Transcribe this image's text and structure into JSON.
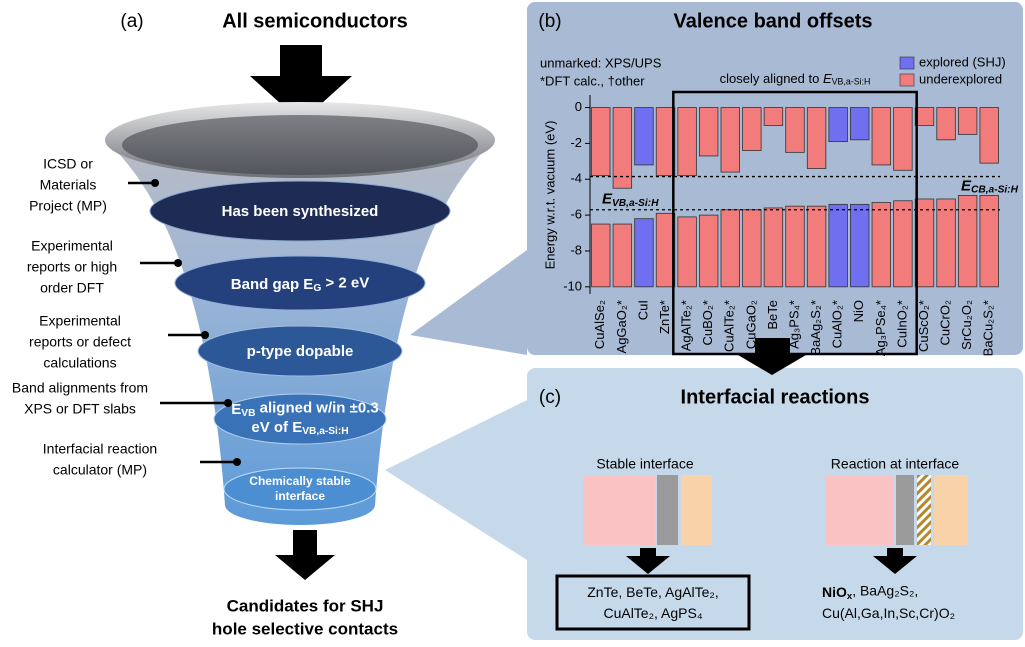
{
  "panel_a": {
    "tag": "(a)",
    "title": "All semiconductors",
    "stages": [
      [
        [
          {
            "t": "Has been synthesized"
          }
        ]
      ],
      [
        [
          {
            "t": "Band gap E"
          },
          {
            "sub": "G"
          },
          {
            "t": " > 2 eV"
          }
        ]
      ],
      [
        [
          {
            "t": "p-type dopable"
          }
        ]
      ],
      [
        [
          {
            "t": "E"
          },
          {
            "sub": "VB"
          },
          {
            "t": " aligned w/in ±0.3"
          }
        ],
        [
          {
            "t": "eV of E"
          },
          {
            "sub": "VB,a-Si:H"
          }
        ]
      ],
      [
        [
          {
            "t": "Chemically stable"
          }
        ],
        [
          {
            "t": "interface"
          }
        ]
      ]
    ],
    "criteria": [
      [
        "ICSD or",
        "Materials",
        "Project (MP)"
      ],
      [
        "Experimental",
        "reports or high",
        "order DFT"
      ],
      [
        "Experimental",
        "reports or defect",
        "calculations"
      ],
      [
        "Band alignments from",
        "XPS or DFT slabs"
      ],
      [
        "Interfacial reaction",
        "calculator (MP)"
      ]
    ],
    "result": [
      "Candidates for SHJ",
      "hole selective contacts"
    ]
  },
  "chart_data": {
    "type": "bar",
    "tag": "(b)",
    "title": "Valence band offsets",
    "y_label": "Energy w.r.t. vacuum (eV)",
    "notes": [
      "unmarked: XPS/UPS",
      "*DFT calc., †other"
    ],
    "categories": [
      "CuAlSe₂",
      "AgGaO₂*",
      "CuI",
      "ZnTe*",
      "AgAlTe₂*",
      "CuBO₂*",
      "CuAlTe₂*",
      "CuGaO₂",
      "BeTe",
      "Ag₃PS₄*",
      "BaAg₂S₂*",
      "CuAlO₂*",
      "NiO",
      "Ag₃PSe₄*",
      "CuInO₂*",
      "CuScO₂*",
      "CuCrO₂",
      "SrCu₂O₂",
      "BaCu₂S₂*"
    ],
    "cb_values": [
      -3.8,
      -4.5,
      -3.2,
      -3.8,
      -3.8,
      -2.7,
      -3.6,
      -2.4,
      -1.0,
      -2.5,
      -3.4,
      -1.9,
      -1.8,
      -3.2,
      -3.5,
      -1.0,
      -1.8,
      -1.5,
      -3.1
    ],
    "vb_values": [
      -6.5,
      -6.5,
      -6.2,
      -5.9,
      -6.1,
      -6.0,
      -5.7,
      -5.7,
      -5.6,
      -5.5,
      -5.5,
      -5.4,
      -5.4,
      -5.3,
      -5.2,
      -5.1,
      -5.1,
      -4.9,
      -4.9
    ],
    "explored": [
      false,
      false,
      true,
      false,
      false,
      false,
      false,
      false,
      false,
      false,
      false,
      true,
      true,
      false,
      false,
      false,
      false,
      false,
      false
    ],
    "aligned": [
      false,
      false,
      false,
      false,
      true,
      true,
      true,
      true,
      true,
      true,
      true,
      true,
      true,
      true,
      true,
      false,
      false,
      false,
      false
    ],
    "aligned_label": [
      {
        "t": "closely aligned to "
      },
      {
        "t": "E",
        "i": true
      },
      {
        "sub": "VB,a-Si:H"
      }
    ],
    "legend": [
      {
        "label": "explored (SHJ)",
        "color": "#6f6ff0"
      },
      {
        "label": "underexplored",
        "color": "#f27b7b"
      }
    ],
    "legend_position": "upper right",
    "reference_lines": [
      {
        "value": -3.85,
        "label": [
          {
            "t": "E"
          },
          {
            "sub": "CB,a-Si:H"
          }
        ]
      },
      {
        "value": -5.7,
        "label": [
          {
            "t": "E"
          },
          {
            "sub": "VB,a-Si:H"
          }
        ]
      }
    ],
    "ylim": [
      -10.4,
      0.7
    ],
    "yticks": [
      0,
      -2,
      -4,
      -6,
      -8,
      -10
    ]
  },
  "panel_c": {
    "tag": "(c)",
    "title": "Interfacial reactions",
    "stable": {
      "title": "Stable interface",
      "result": [
        [
          {
            "t": "ZnTe, BeTe, AgAlTe₂,"
          }
        ],
        [
          {
            "t": "CuAlTe₂, AgPS₄"
          }
        ]
      ]
    },
    "reaction": {
      "title": "Reaction at interface",
      "result": [
        [
          {
            "t": "NiO",
            "b": true
          },
          {
            "sub": "x",
            "b": true
          },
          {
            "t": ", BaAg₂S₂,"
          }
        ],
        [
          {
            "t": "Cu(Al,Ga,In,Sc,Cr)O₂"
          }
        ]
      ]
    }
  }
}
